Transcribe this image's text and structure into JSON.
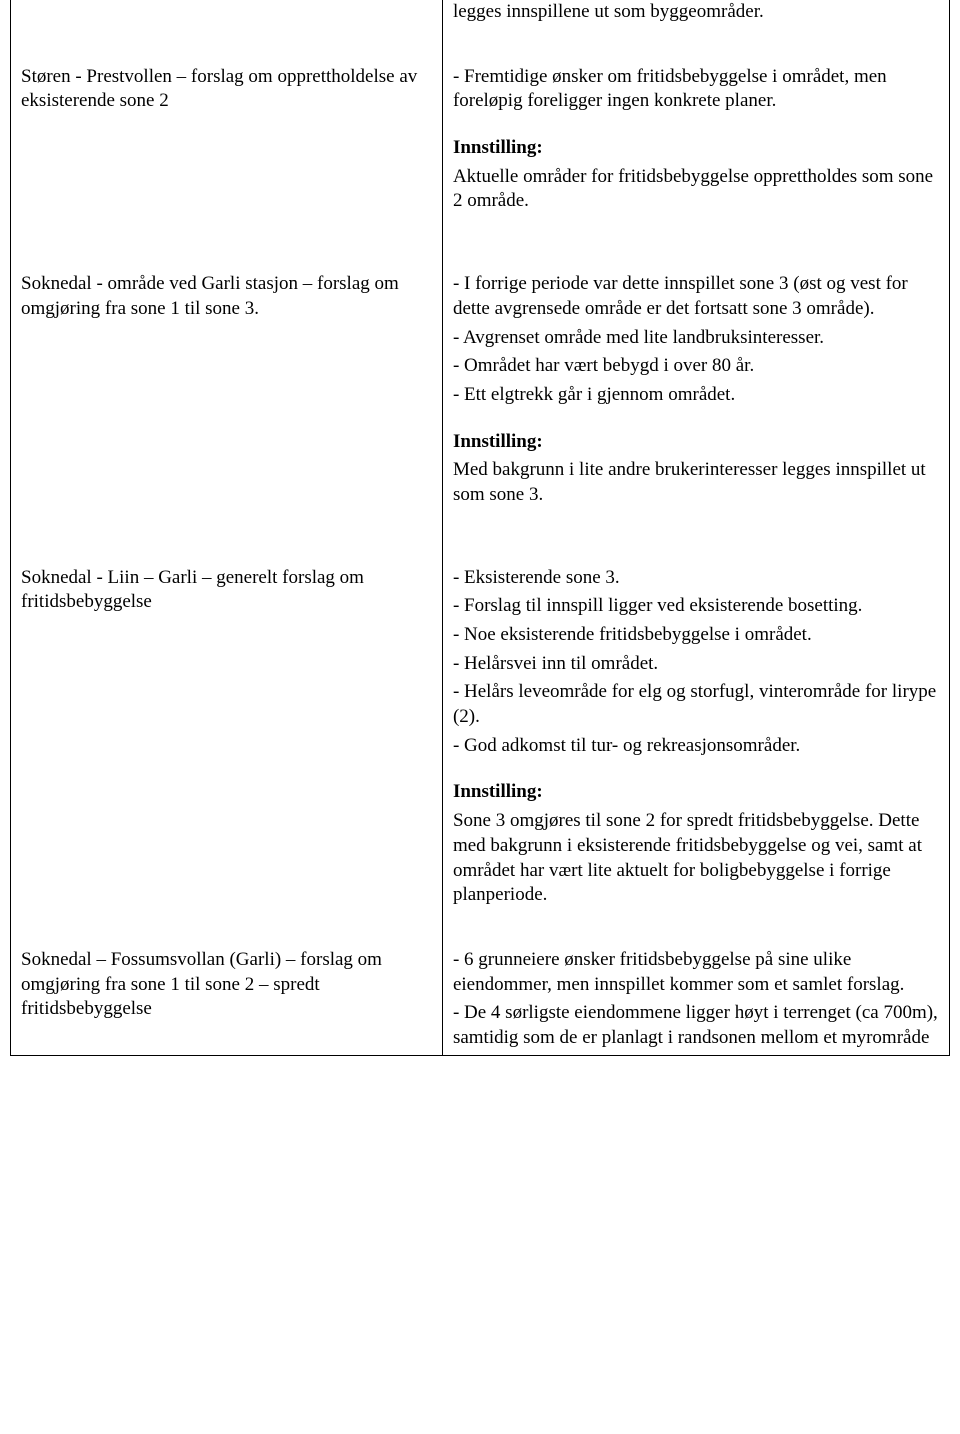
{
  "row0": {
    "right_pre": "legges innspillene ut som byggeområder."
  },
  "row1": {
    "left": "Støren - Prestvollen – forslag om opprettholdelse av eksisterende sone 2",
    "right_p1": "- Fremtidige ønsker om fritidsbebyggelse i området, men foreløpig foreligger ingen konkrete planer.",
    "heading": "Innstilling:",
    "right_p2": "Aktuelle områder for fritidsbebyggelse opprettholdes som sone 2 område."
  },
  "row2": {
    "left": "Soknedal - område ved Garli stasjon – forslag om omgjøring fra sone 1 til sone 3.",
    "r1": "- I forrige periode var dette innspillet sone 3 (øst og vest for dette avgrensede område er det fortsatt sone 3 område).",
    "r2": "- Avgrenset område med lite landbruksinteresser.",
    "r3": "- Området har vært bebygd i over 80 år.",
    "r4": "- Ett elgtrekk går i gjennom området.",
    "heading": "Innstilling:",
    "r5": "Med bakgrunn i lite andre brukerinteresser legges innspillet ut som sone 3."
  },
  "row3": {
    "left": "Soknedal - Liin – Garli – generelt forslag om fritidsbebyggelse",
    "r1": "- Eksisterende sone 3.",
    "r2": "- Forslag til innspill ligger ved eksisterende bosetting.",
    "r3": "- Noe eksisterende fritidsbebyggelse i området.",
    "r4": "- Helårsvei inn til området.",
    "r5": "- Helårs leveområde for elg og storfugl, vinterområde for lirype (2).",
    "r6": "- God adkomst til tur- og rekreasjonsområder.",
    "heading": "Innstilling:",
    "r7": "Sone 3 omgjøres til sone 2 for spredt fritidsbebyggelse. Dette med bakgrunn i eksisterende fritidsbebyggelse og vei, samt at området har vært lite aktuelt for boligbebyggelse i forrige planperiode."
  },
  "row4": {
    "left": "Soknedal – Fossumsvollan (Garli) – forslag om omgjøring fra sone 1 til sone 2 – spredt fritidsbebyggelse",
    "r1": "- 6 grunneiere ønsker fritidsbebyggelse på sine ulike eiendommer, men innspillet kommer som et samlet forslag.",
    "r2": "- De 4 sørligste eiendommene ligger høyt i terrenget (ca 700m), samtidig som de er planlagt i randsonen mellom et myrområde"
  }
}
